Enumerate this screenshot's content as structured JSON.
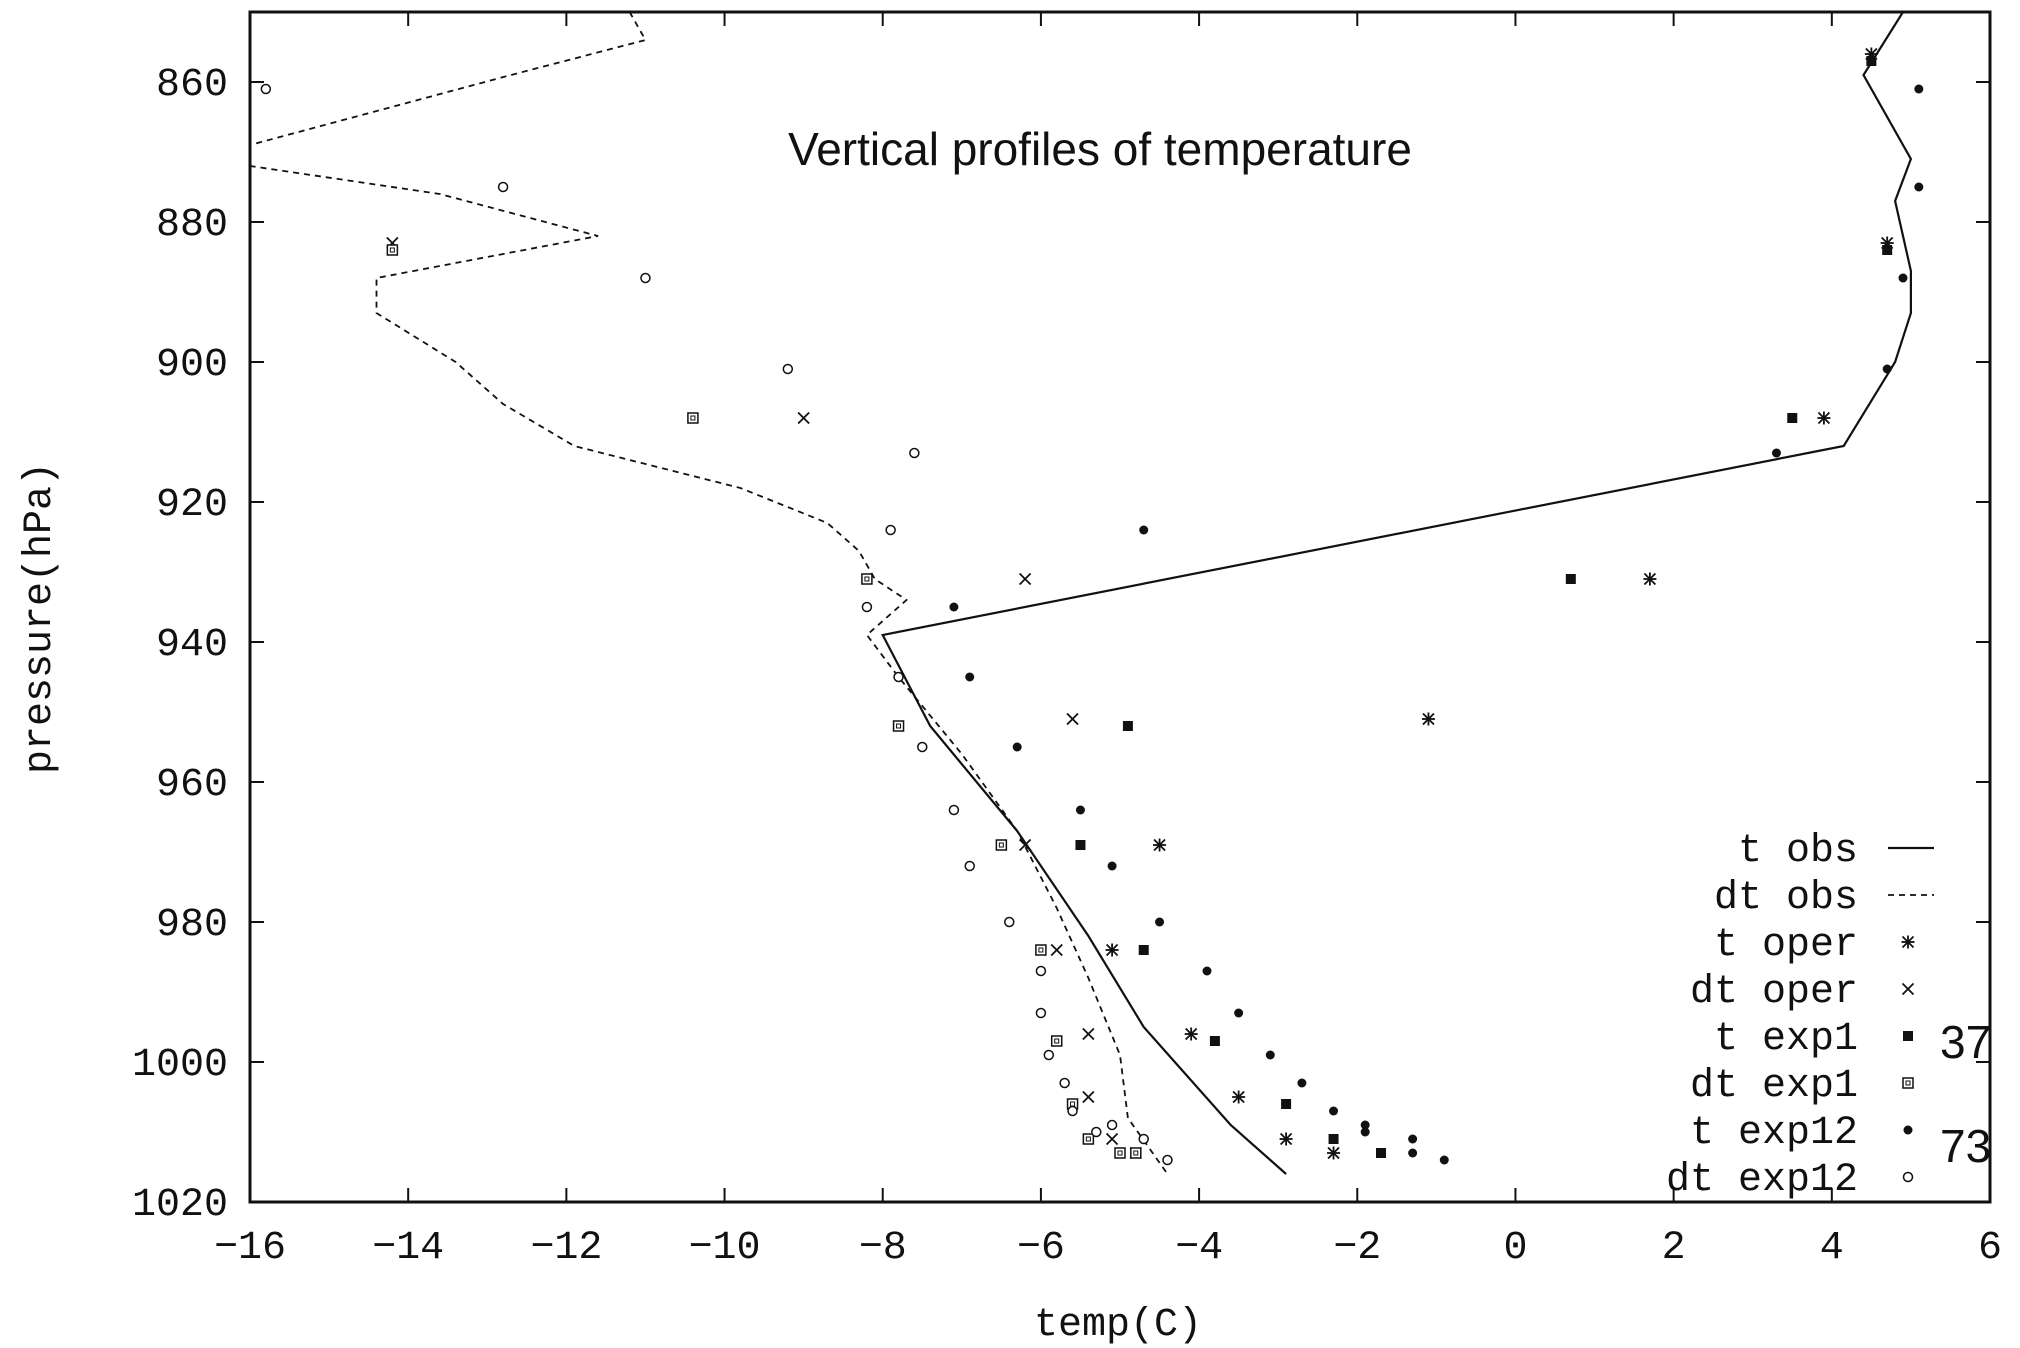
{
  "chart_data": {
    "type": "scatter",
    "title": "Vertical profiles of temperature",
    "xlabel": "temp(C)",
    "ylabel": "pressure(hPa)",
    "xlim": [
      -16,
      6
    ],
    "ylim": [
      1020,
      850
    ],
    "y_inverted": true,
    "xticks": [
      -16,
      -14,
      -12,
      -10,
      -8,
      -6,
      -4,
      -2,
      0,
      2,
      4,
      6
    ],
    "xtick_labels": [
      "−16",
      "−14",
      "−12",
      "−10",
      "−8",
      "−6",
      "−4",
      "−2",
      "0",
      "2",
      "4",
      "6"
    ],
    "yticks": [
      860,
      880,
      900,
      920,
      940,
      960,
      980,
      1000,
      1020
    ],
    "ytick_labels": [
      "860",
      "880",
      "900",
      "920",
      "940",
      "960",
      "980",
      "1000",
      "1020"
    ],
    "grid": false,
    "legend_position": "bottom-right",
    "annotations": [
      "37",
      "73"
    ],
    "series": [
      {
        "name": "t obs",
        "style": "line-solid",
        "points": [
          [
            4.9,
            850
          ],
          [
            4.4,
            859
          ],
          [
            5.0,
            871
          ],
          [
            4.8,
            877
          ],
          [
            5.0,
            887
          ],
          [
            5.0,
            893
          ],
          [
            4.8,
            900
          ],
          [
            4.15,
            912
          ],
          [
            -8.0,
            939
          ],
          [
            -7.4,
            952
          ],
          [
            -6.3,
            967
          ],
          [
            -5.4,
            982
          ],
          [
            -4.7,
            995
          ],
          [
            -3.6,
            1009
          ],
          [
            -2.9,
            1016
          ]
        ]
      },
      {
        "name": "dt obs",
        "style": "line-dashed",
        "points": [
          [
            -11.2,
            850
          ],
          [
            -11.0,
            854
          ],
          [
            -12.7,
            859
          ],
          [
            -16.0,
            869
          ],
          [
            -16.0,
            872
          ],
          [
            -13.6,
            876
          ],
          [
            -11.6,
            882
          ],
          [
            -14.4,
            888
          ],
          [
            -14.4,
            893
          ],
          [
            -13.4,
            900
          ],
          [
            -12.8,
            906
          ],
          [
            -11.9,
            912
          ],
          [
            -9.8,
            918
          ],
          [
            -8.7,
            923
          ],
          [
            -8.3,
            927
          ],
          [
            -8.1,
            931
          ],
          [
            -7.7,
            934
          ],
          [
            -8.2,
            939
          ],
          [
            -7.8,
            945
          ],
          [
            -7.0,
            956
          ],
          [
            -6.3,
            967
          ],
          [
            -5.8,
            978
          ],
          [
            -5.4,
            988
          ],
          [
            -5.0,
            999
          ],
          [
            -4.9,
            1008
          ],
          [
            -4.4,
            1016
          ]
        ]
      },
      {
        "name": "t oper",
        "marker": "asterisk",
        "points": [
          [
            4.5,
            856
          ],
          [
            4.7,
            883
          ],
          [
            3.9,
            908
          ],
          [
            1.7,
            931
          ],
          [
            -1.1,
            951
          ],
          [
            -4.5,
            969
          ],
          [
            -5.1,
            984
          ],
          [
            -4.1,
            996
          ],
          [
            -3.5,
            1005
          ],
          [
            -2.9,
            1011
          ],
          [
            -2.3,
            1013
          ]
        ]
      },
      {
        "name": "dt oper",
        "marker": "cross",
        "points": [
          [
            -14.2,
            883
          ],
          [
            -9.0,
            908
          ],
          [
            -6.2,
            931
          ],
          [
            -5.6,
            951
          ],
          [
            -6.2,
            969
          ],
          [
            -5.8,
            984
          ],
          [
            -5.4,
            996
          ],
          [
            -5.4,
            1005
          ],
          [
            -5.1,
            1011
          ],
          [
            -4.8,
            1013
          ]
        ]
      },
      {
        "name": "t exp1",
        "marker": "filled-square",
        "points": [
          [
            4.5,
            857
          ],
          [
            4.7,
            884
          ],
          [
            3.5,
            908
          ],
          [
            0.7,
            931
          ],
          [
            -4.9,
            952
          ],
          [
            -5.5,
            969
          ],
          [
            -4.7,
            984
          ],
          [
            -3.8,
            997
          ],
          [
            -2.9,
            1006
          ],
          [
            -2.3,
            1011
          ],
          [
            -1.7,
            1013
          ]
        ]
      },
      {
        "name": "dt exp1",
        "marker": "open-square",
        "points": [
          [
            -14.2,
            884
          ],
          [
            -10.4,
            908
          ],
          [
            -8.2,
            931
          ],
          [
            -7.8,
            952
          ],
          [
            -6.5,
            969
          ],
          [
            -6.0,
            984
          ],
          [
            -5.8,
            997
          ],
          [
            -5.6,
            1006
          ],
          [
            -5.4,
            1011
          ],
          [
            -5.0,
            1013
          ],
          [
            -4.8,
            1013
          ]
        ]
      },
      {
        "name": "t exp12",
        "marker": "filled-circle",
        "points": [
          [
            5.1,
            861
          ],
          [
            5.1,
            875
          ],
          [
            4.9,
            888
          ],
          [
            4.7,
            901
          ],
          [
            3.3,
            913
          ],
          [
            -4.7,
            924
          ],
          [
            -7.1,
            935
          ],
          [
            -6.9,
            945
          ],
          [
            -6.3,
            955
          ],
          [
            -5.5,
            964
          ],
          [
            -5.1,
            972
          ],
          [
            -4.5,
            980
          ],
          [
            -3.9,
            987
          ],
          [
            -3.5,
            993
          ],
          [
            -3.1,
            999
          ],
          [
            -2.7,
            1003
          ],
          [
            -2.3,
            1007
          ],
          [
            -1.9,
            1009
          ],
          [
            -1.9,
            1010
          ],
          [
            -1.3,
            1011
          ],
          [
            -1.3,
            1013
          ],
          [
            -0.9,
            1014
          ]
        ]
      },
      {
        "name": "dt exp12",
        "marker": "open-circle",
        "points": [
          [
            -15.8,
            861
          ],
          [
            -12.8,
            875
          ],
          [
            -11.0,
            888
          ],
          [
            -9.2,
            901
          ],
          [
            -7.6,
            913
          ],
          [
            -7.9,
            924
          ],
          [
            -8.2,
            935
          ],
          [
            -7.8,
            945
          ],
          [
            -7.5,
            955
          ],
          [
            -7.1,
            964
          ],
          [
            -6.9,
            972
          ],
          [
            -6.4,
            980
          ],
          [
            -6.0,
            987
          ],
          [
            -6.0,
            993
          ],
          [
            -5.9,
            999
          ],
          [
            -5.7,
            1003
          ],
          [
            -5.6,
            1007
          ],
          [
            -5.3,
            1010
          ],
          [
            -5.1,
            1009
          ],
          [
            -4.7,
            1011
          ],
          [
            -4.4,
            1014
          ]
        ]
      }
    ]
  }
}
